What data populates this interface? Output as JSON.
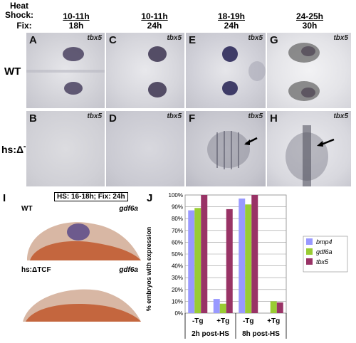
{
  "header": {
    "heat_shock_label": "Heat\nShock:",
    "fix_label": "Fix:",
    "columns": [
      {
        "hs": "10-11h",
        "fix": "18h"
      },
      {
        "hs": "10-11h",
        "fix": "24h"
      },
      {
        "hs": "18-19h",
        "fix": "24h"
      },
      {
        "hs": "24-25h",
        "fix": "30h"
      }
    ]
  },
  "rows": {
    "wt": "WT",
    "tg": "hs:ΔTCF"
  },
  "panels": {
    "A": {
      "letter": "A",
      "gene": "tbx5"
    },
    "B": {
      "letter": "B",
      "gene": "tbx5"
    },
    "C": {
      "letter": "C",
      "gene": "tbx5"
    },
    "D": {
      "letter": "D",
      "gene": "tbx5"
    },
    "E": {
      "letter": "E",
      "gene": "tbx5"
    },
    "F": {
      "letter": "F",
      "gene": "tbx5"
    },
    "G": {
      "letter": "G",
      "gene": "tbx5"
    },
    "H": {
      "letter": "H",
      "gene": "tbx5"
    }
  },
  "panel_i": {
    "letter": "I",
    "box_label": "HS: 16-18h; Fix: 24h",
    "top_label": "WT",
    "bottom_label": "hs:ΔTCF",
    "gene": "gdf6a"
  },
  "panel_j": {
    "letter": "J"
  },
  "chart_data": {
    "type": "bar",
    "ylabel": "% embryos with expression",
    "ylim": [
      0,
      100
    ],
    "yticks": [
      "0%",
      "10%",
      "20%",
      "30%",
      "40%",
      "50%",
      "60%",
      "70%",
      "80%",
      "90%",
      "100%"
    ],
    "categories": [
      "-Tg",
      "+Tg",
      "-Tg",
      "+Tg"
    ],
    "groups": [
      "2h post-HS",
      "8h post-HS"
    ],
    "series": [
      {
        "name": "bmp4",
        "color": "#9999ff",
        "values": [
          87,
          12,
          97,
          0
        ]
      },
      {
        "name": "gdf6a",
        "color": "#99cc33",
        "values": [
          89,
          8,
          92,
          10
        ]
      },
      {
        "name": "tbx5",
        "color": "#993366",
        "values": [
          100,
          88,
          100,
          9
        ]
      }
    ],
    "legend_position": "right",
    "grid": true
  }
}
